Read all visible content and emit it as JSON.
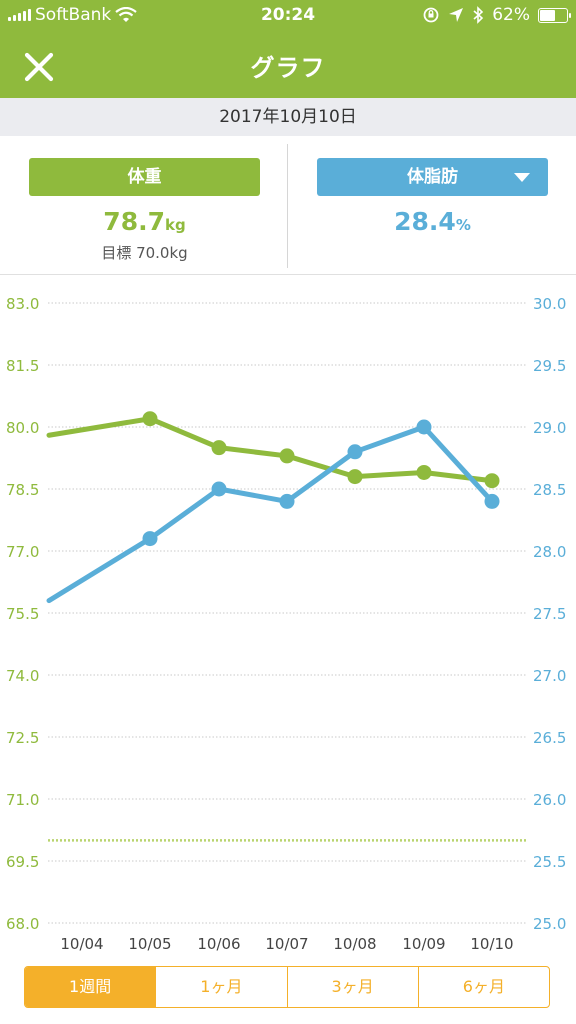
{
  "status_bar": {
    "carrier": "SoftBank",
    "time": "20:24",
    "battery": "62%",
    "battery_level": 0.62,
    "icons": [
      "signal-icon",
      "wifi-icon",
      "rotation-lock-icon",
      "location-icon",
      "bluetooth-icon",
      "battery-icon"
    ]
  },
  "header": {
    "title": "グラフ",
    "close_icon": "close-icon",
    "background": "#8fba3d"
  },
  "date_bar": {
    "date": "2017年10月10日"
  },
  "metrics": {
    "weight": {
      "label": "体重",
      "value": "78.7",
      "unit": "kg",
      "goal": "目標 70.0kg",
      "color": "#8fba3d"
    },
    "body_fat": {
      "label": "体脂肪",
      "value": "28.4",
      "unit": "%",
      "color": "#5aaed8",
      "dropdown_icon": "chevron-down-icon"
    }
  },
  "period_tabs": {
    "items": [
      {
        "label": "1週間",
        "active": true
      },
      {
        "label": "1ヶ月",
        "active": false
      },
      {
        "label": "3ヶ月",
        "active": false
      },
      {
        "label": "6ヶ月",
        "active": false
      }
    ],
    "accent": "#f4b02a"
  },
  "chart_data": {
    "type": "line",
    "x": [
      "10/04",
      "10/05",
      "10/06",
      "10/07",
      "10/08",
      "10/09",
      "10/10"
    ],
    "left_axis": {
      "min": 68.0,
      "max": 83.0,
      "ticks": [
        "68.0",
        "69.5",
        "71.0",
        "72.5",
        "74.0",
        "75.5",
        "77.0",
        "78.5",
        "80.0",
        "81.5",
        "83.0"
      ],
      "color": "#8fba3d"
    },
    "right_axis": {
      "min": 25.0,
      "max": 30.0,
      "ticks": [
        "25.0",
        "25.5",
        "26.0",
        "26.5",
        "27.0",
        "27.5",
        "28.0",
        "28.5",
        "29.0",
        "29.5",
        "30.0"
      ],
      "color": "#5aaed8"
    },
    "series": [
      {
        "axis": "left",
        "color": "#8fba3d",
        "values": [
          79.8,
          80.2,
          79.5,
          79.3,
          78.8,
          78.9,
          78.7
        ],
        "markers": [
          false,
          true,
          true,
          true,
          true,
          true,
          true
        ]
      },
      {
        "axis": "right",
        "color": "#5aaed8",
        "values": [
          27.6,
          28.1,
          28.5,
          28.4,
          28.8,
          29.0,
          28.4
        ],
        "markers": [
          false,
          true,
          true,
          true,
          true,
          true,
          true
        ]
      }
    ],
    "goal_line": {
      "value": 70.0,
      "axis": "left"
    },
    "grid": true
  }
}
